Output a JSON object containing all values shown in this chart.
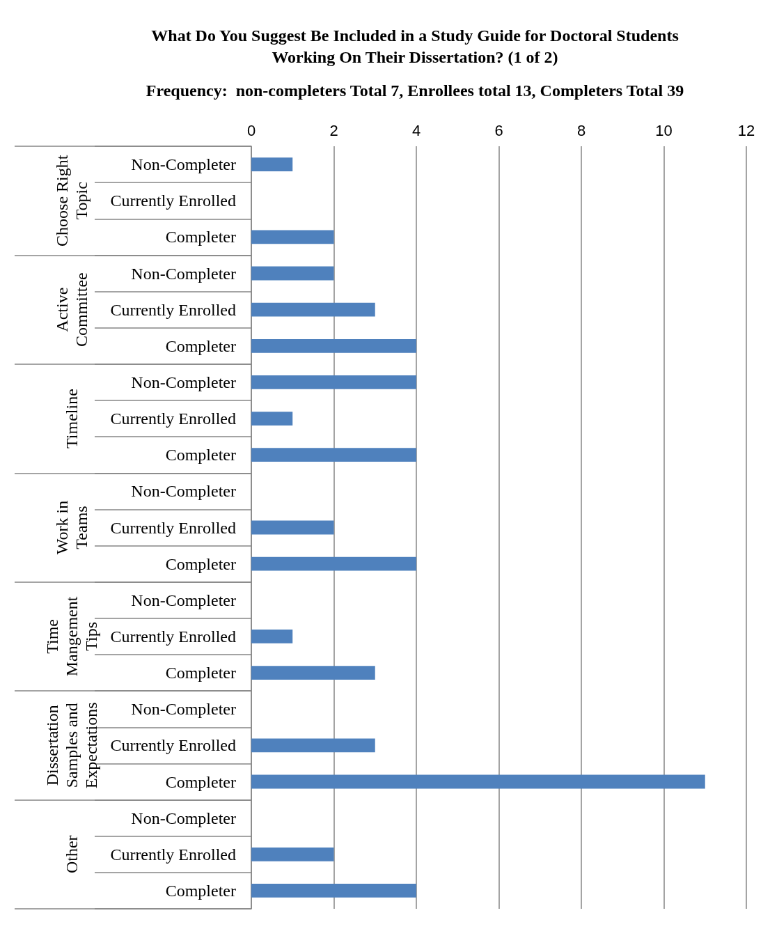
{
  "chart_data": {
    "type": "bar",
    "orientation": "horizontal",
    "title": "What Do You Suggest Be Included in a Study Guide for Doctoral Students\nWorking On Their Dissertation? (1 of 2)",
    "subtitle": "Frequency:  non-completers Total 7, Enrollees total 13, Completers Total 39",
    "categories": [
      "Non-Completer",
      "Currently Enrolled",
      "Completer",
      "Non-Completer",
      "Currently Enrolled",
      "Completer",
      "Non-Completer",
      "Currently Enrolled",
      "Completer",
      "Non-Completer",
      "Currently Enrolled",
      "Completer",
      "Non-Completer",
      "Currently Enrolled",
      "Completer",
      "Non-Completer",
      "Currently Enrolled",
      "Completer",
      "Non-Completer",
      "Currently Enrolled",
      "Completer"
    ],
    "values": [
      1,
      0,
      2,
      2,
      3,
      4,
      4,
      1,
      4,
      0,
      2,
      4,
      0,
      1,
      3,
      0,
      3,
      11,
      0,
      2,
      4
    ],
    "color": "#4f81bd",
    "annotations": [
      "Choose Right\nTopic",
      "Active\nCommittee",
      "Timeline",
      "Work in\nTeams",
      "Time\nMangement\nTips",
      "Dissertation\nSamples and\nExpectations",
      "Other"
    ],
    "xlim": [
      0,
      12
    ],
    "xticks": [
      0,
      2,
      4,
      6,
      8,
      10,
      12
    ],
    "grid": "x"
  }
}
